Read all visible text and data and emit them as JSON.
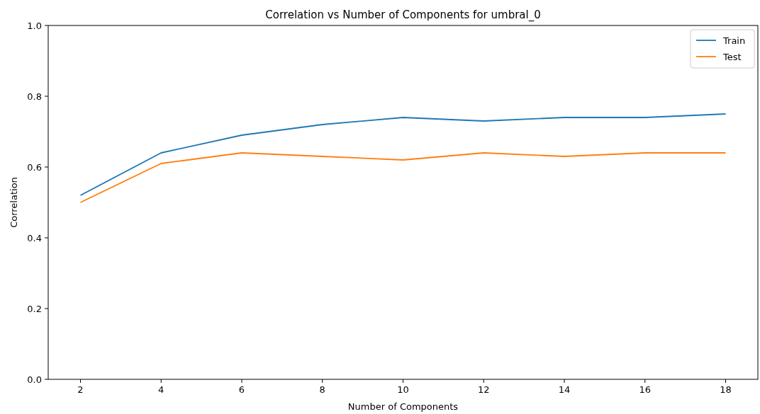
{
  "chart_data": {
    "type": "line",
    "title": "Correlation vs Number of Components for umbral_0",
    "xlabel": "Number of Components",
    "ylabel": "Correlation",
    "x": [
      2,
      4,
      6,
      8,
      10,
      12,
      14,
      16,
      18
    ],
    "series": [
      {
        "name": "Train",
        "color": "#1f77b4",
        "values": [
          0.52,
          0.64,
          0.69,
          0.72,
          0.74,
          0.73,
          0.74,
          0.74,
          0.75
        ]
      },
      {
        "name": "Test",
        "color": "#ff7f0e",
        "values": [
          0.5,
          0.61,
          0.64,
          0.63,
          0.62,
          0.64,
          0.63,
          0.64,
          0.64
        ]
      }
    ],
    "xlim": [
      1.2,
      18.8
    ],
    "xticks": [
      2,
      4,
      6,
      8,
      10,
      12,
      14,
      16,
      18
    ],
    "ylim": [
      0,
      1
    ],
    "yticks": [
      {
        "value": 0,
        "label": "0.0"
      },
      {
        "value": 0.2,
        "label": "0.2"
      },
      {
        "value": 0.4,
        "label": "0.4"
      },
      {
        "value": 0.6,
        "label": "0.6"
      },
      {
        "value": 0.8,
        "label": "0.8"
      },
      {
        "value": 1,
        "label": "1.0"
      }
    ],
    "legend": "top right",
    "grid": false,
    "marker": "none",
    "line_style": "solid"
  }
}
